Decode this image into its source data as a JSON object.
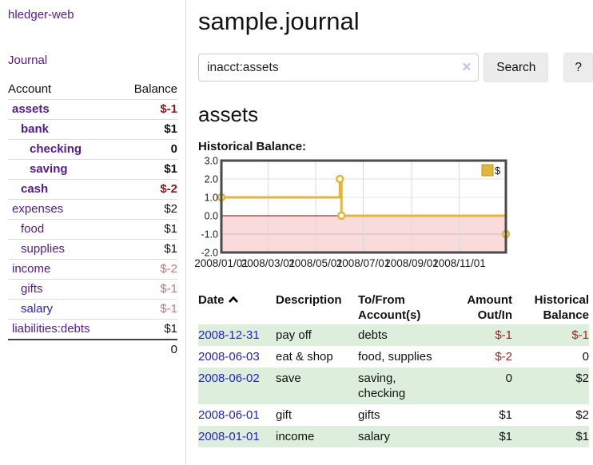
{
  "sidebar": {
    "brand": "hledger-web",
    "journal_link": "Journal",
    "columns": {
      "account": "Account",
      "balance": "Balance"
    },
    "accounts": [
      {
        "name": "assets",
        "depth": 1,
        "name_style": "bold-purple",
        "balance": "$-1",
        "balance_style": "neg-bold"
      },
      {
        "name": "bank",
        "depth": 2,
        "name_style": "bold-purple",
        "balance": "$1",
        "balance_style": "bold"
      },
      {
        "name": "checking",
        "depth": 3,
        "name_style": "bold-purple",
        "balance": "0",
        "balance_style": "bold"
      },
      {
        "name": "saving",
        "depth": 3,
        "name_style": "bold-purple",
        "balance": "$1",
        "balance_style": "bold"
      },
      {
        "name": "cash",
        "depth": 2,
        "name_style": "bold-purple",
        "balance": "$-2",
        "balance_style": "neg-bold"
      },
      {
        "name": "expenses",
        "depth": 1,
        "name_style": "purple",
        "balance": "$2",
        "balance_style": "plain"
      },
      {
        "name": "food",
        "depth": 2,
        "name_style": "purple",
        "balance": "$1",
        "balance_style": "plain"
      },
      {
        "name": "supplies",
        "depth": 2,
        "name_style": "purple",
        "balance": "$1",
        "balance_style": "plain"
      },
      {
        "name": "income",
        "depth": 1,
        "name_style": "purple",
        "balance": "$-2",
        "balance_style": "neg-muted"
      },
      {
        "name": "gifts",
        "depth": 2,
        "name_style": "purple",
        "balance": "$-1",
        "balance_style": "neg-muted"
      },
      {
        "name": "salary",
        "depth": 2,
        "name_style": "blue",
        "balance": "$-1",
        "balance_style": "neg-muted"
      },
      {
        "name": "liabilities:debts",
        "depth": 1,
        "name_style": "purple",
        "balance": "$1",
        "balance_style": "plain"
      }
    ],
    "total": "0"
  },
  "main": {
    "title": "sample.journal",
    "search": {
      "value": "inacct:assets",
      "clear_icon": "✕",
      "button_label": "Search",
      "help_label": "?"
    },
    "account_heading": "assets",
    "chart_title": "Historical Balance:"
  },
  "chart_data": {
    "type": "line",
    "title": "Historical Balance:",
    "legend": "$",
    "legend_position": "top-right",
    "grid": true,
    "ylim": [
      -2,
      3
    ],
    "y_ticks": [
      "3.0",
      "2.0",
      "1.0",
      "0.0",
      "-1.0",
      "-2.0"
    ],
    "x_range_days": 365,
    "x_ticks": [
      {
        "label": "2008/01/01",
        "day": 0
      },
      {
        "label": "2008/03/01",
        "day": 60
      },
      {
        "label": "2008/05/01",
        "day": 121
      },
      {
        "label": "2008/07/01",
        "day": 182
      },
      {
        "label": "2008/09/01",
        "day": 244
      },
      {
        "label": "2008/11/01",
        "day": 305
      }
    ],
    "series": [
      {
        "name": "$",
        "color": "#e3b53c",
        "points": [
          {
            "date": "2008-01-01",
            "day": 0,
            "value": 1
          },
          {
            "date": "2008-06-01",
            "day": 152,
            "value": 2
          },
          {
            "date": "2008-06-03",
            "day": 154,
            "value": 0
          },
          {
            "date": "2008-12-31",
            "day": 365,
            "value": -1
          }
        ]
      }
    ],
    "negative_region_color": "#fadbdb",
    "zero_line_color": "#8b0000"
  },
  "register": {
    "columns": [
      "Date",
      "Description",
      "To/From Account(s)",
      "Amount Out/In",
      "Historical Balance"
    ],
    "rows": [
      {
        "date": "2008-12-31",
        "description": "pay off",
        "accounts": "debts",
        "amount": "$-1",
        "amount_class": "neg",
        "balance": "$-1",
        "balance_class": "neg"
      },
      {
        "date": "2008-06-03",
        "description": "eat & shop",
        "accounts": "food, supplies",
        "amount": "$-2",
        "amount_class": "neg",
        "balance": "0",
        "balance_class": "plain"
      },
      {
        "date": "2008-06-02",
        "description": "save",
        "accounts": "saving, checking",
        "amount": "0",
        "amount_class": "plain",
        "balance": "$2",
        "balance_class": "plain"
      },
      {
        "date": "2008-06-01",
        "description": "gift",
        "accounts": "gifts",
        "amount": "$1",
        "amount_class": "plain",
        "balance": "$2",
        "balance_class": "plain"
      },
      {
        "date": "2008-01-01",
        "description": "income",
        "accounts": "salary",
        "amount": "$1",
        "amount_class": "plain",
        "balance": "$1",
        "balance_class": "plain"
      }
    ]
  }
}
